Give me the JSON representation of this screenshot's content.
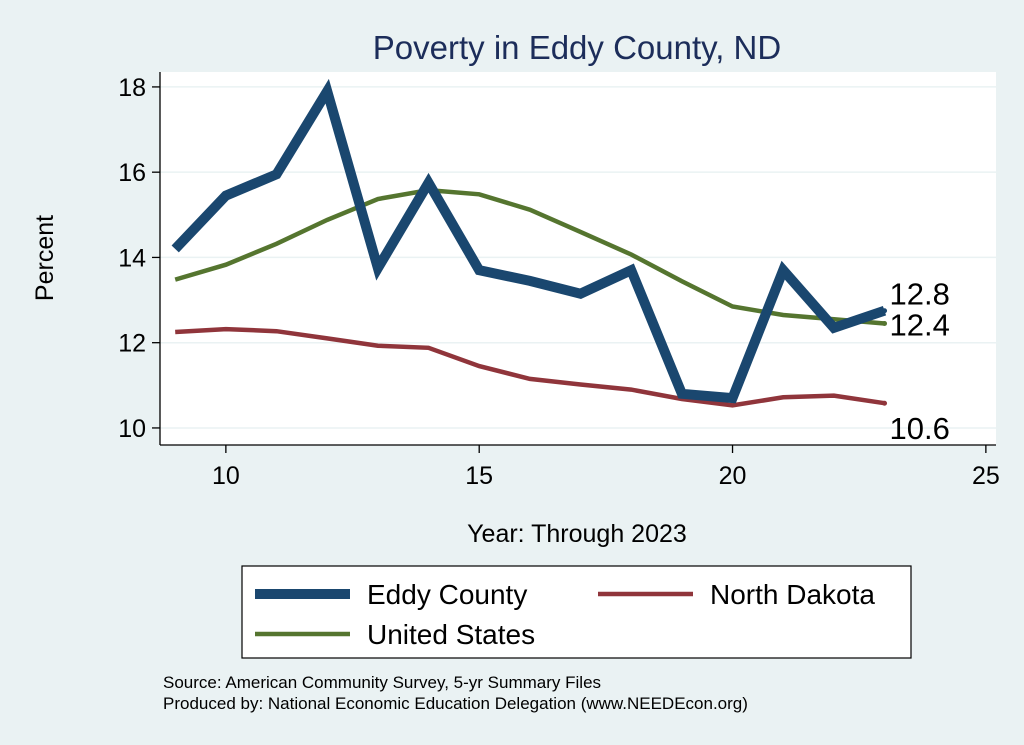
{
  "chart_data": {
    "type": "line",
    "title": "Poverty in Eddy County, ND",
    "xlabel": "Year: Through 2023",
    "ylabel": "Percent",
    "xlim": [
      8.7,
      25.2
    ],
    "ylim": [
      9.6,
      18.35
    ],
    "xticks": [
      10,
      15,
      20,
      25
    ],
    "yticks": [
      10,
      12,
      14,
      16,
      18
    ],
    "grid": "horizontal",
    "legend_position": "bottom",
    "x": [
      9,
      10,
      11,
      12,
      13,
      14,
      15,
      16,
      17,
      18,
      19,
      20,
      21,
      22,
      23
    ],
    "series": [
      {
        "name": "Eddy County",
        "color": "#1a476f",
        "values": [
          14.2,
          15.45,
          15.95,
          17.9,
          13.75,
          15.75,
          13.7,
          13.45,
          13.15,
          13.7,
          10.8,
          10.7,
          13.7,
          12.35,
          12.75
        ],
        "end_label": "12.8"
      },
      {
        "name": "North Dakota",
        "color": "#90353b",
        "values": [
          12.25,
          12.32,
          12.27,
          12.1,
          11.93,
          11.88,
          11.45,
          11.15,
          11.02,
          10.9,
          10.68,
          10.53,
          10.72,
          10.76,
          10.58
        ],
        "end_label": "10.6"
      },
      {
        "name": "United States",
        "color": "#55752f",
        "values": [
          13.48,
          13.83,
          14.32,
          14.88,
          15.37,
          15.58,
          15.48,
          15.12,
          14.6,
          14.07,
          13.44,
          12.85,
          12.65,
          12.55,
          12.45
        ],
        "end_label": "12.4"
      }
    ],
    "notes": [
      "Source: American Community Survey, 5-yr Summary Files",
      "Produced by: National Economic Education Delegation (www.NEEDEcon.org)"
    ]
  }
}
